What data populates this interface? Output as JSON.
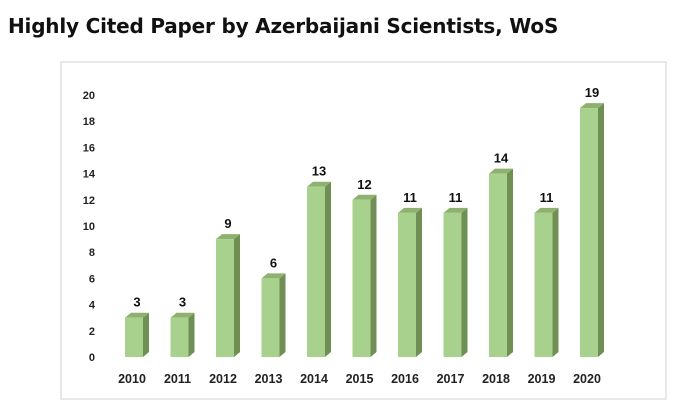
{
  "title": "Highly Cited Paper by Azerbaijani Scientists, WoS",
  "colors": {
    "bar_front": "#a9d18e",
    "bar_side": "#6f8f55",
    "bar_top": "#8fb170",
    "frame": "#d9d9d9"
  },
  "chart_data": {
    "type": "bar",
    "title": "Highly Cited Paper by Azerbaijani Scientists, WoS",
    "categories": [
      "2010",
      "2011",
      "2012",
      "2013",
      "2014",
      "2015",
      "2016",
      "2017",
      "2018",
      "2019",
      "2020"
    ],
    "values": [
      3,
      3,
      9,
      6,
      13,
      12,
      11,
      11,
      14,
      11,
      19
    ],
    "xlabel": "",
    "ylabel": "",
    "ylim": [
      0,
      20
    ],
    "yticks": [
      "0",
      "2",
      "4",
      "6",
      "8",
      "10",
      "12",
      "14",
      "16",
      "18",
      "20"
    ],
    "grid": false,
    "legend": "none",
    "data_labels": true,
    "style": "3d-column"
  }
}
